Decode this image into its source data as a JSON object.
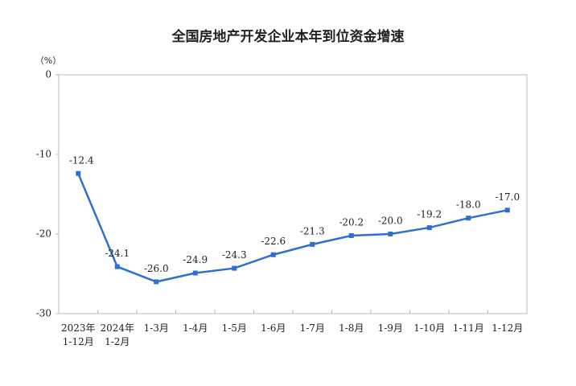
{
  "chart_data": {
    "type": "line",
    "title": "全国房地产开发企业本年到位资金增速",
    "y_unit": "（%）",
    "categories": [
      "2023年\n1-12月",
      "2024年\n1-2月",
      "1-3月",
      "1-4月",
      "1-5月",
      "1-6月",
      "1-7月",
      "1-8月",
      "1-9月",
      "1-10月",
      "1-11月",
      "1-12月"
    ],
    "values": [
      -12.4,
      -24.1,
      -26.0,
      -24.9,
      -24.3,
      -22.6,
      -21.3,
      -20.2,
      -20.0,
      -19.2,
      -18.0,
      -17.0
    ],
    "value_labels": [
      "-12.4",
      "-24.1",
      "-26.0",
      "-24.9",
      "-24.3",
      "-22.6",
      "-21.3",
      "-20.2",
      "-20.0",
      "-19.2",
      "-18.0",
      "-17.0"
    ],
    "color": "#2f6fd0",
    "ylim": [
      -30,
      0
    ],
    "yticks": [
      -30,
      -20,
      -10,
      0
    ]
  }
}
